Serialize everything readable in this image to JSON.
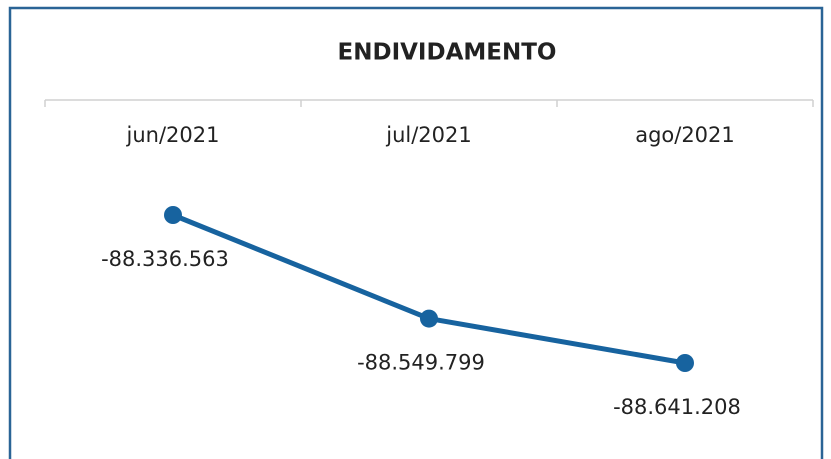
{
  "chart_data": {
    "type": "line",
    "title": "ENDIVIDAMENTO",
    "categories": [
      "jun/2021",
      "jul/2021",
      "ago/2021"
    ],
    "series": [
      {
        "name": "Endividamento",
        "color": "#17639f",
        "values": [
          -88336563,
          -88549799,
          -88641208
        ],
        "value_labels": [
          "-88.336.563",
          "-88.549.799",
          "-88.641.208"
        ]
      }
    ]
  }
}
